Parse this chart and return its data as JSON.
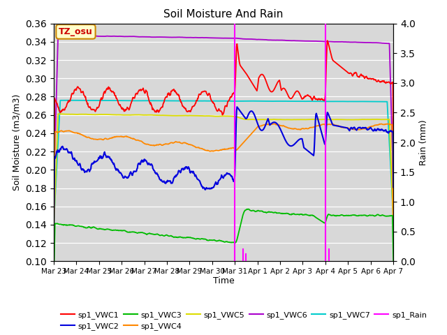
{
  "title": "Soil Moisture And Rain",
  "ylabel_left": "Soil Moisture (m3/m3)",
  "ylabel_right": "Rain (mm)",
  "xlabel": "Time",
  "annotation": "TZ_osu",
  "ylim_left": [
    0.1,
    0.36
  ],
  "ylim_right": [
    0.0,
    4.0
  ],
  "yticks_left": [
    0.1,
    0.12,
    0.14,
    0.16,
    0.18,
    0.2,
    0.22,
    0.24,
    0.26,
    0.28,
    0.3,
    0.32,
    0.34,
    0.36
  ],
  "yticks_right": [
    0.0,
    0.5,
    1.0,
    1.5,
    2.0,
    2.5,
    3.0,
    3.5,
    4.0
  ],
  "background_color": "#d8d8d8",
  "colors": {
    "sp1_VWC1": "#ff0000",
    "sp1_VWC2": "#0000dd",
    "sp1_VWC3": "#00bb00",
    "sp1_VWC4": "#ff8800",
    "sp1_VWC5": "#dddd00",
    "sp1_VWC6": "#aa00cc",
    "sp1_VWC7": "#00cccc",
    "sp1_Rain": "#ff00ff"
  },
  "xtick_labels": [
    "Mar 23",
    "Mar 24",
    "Mar 25",
    "Mar 26",
    "Mar 27",
    "Mar 28",
    "Mar 29",
    "Mar 30",
    "Mar 31",
    "Apr 1",
    "Apr 2",
    "Apr 3",
    "Apr 4",
    "Apr 5",
    "Apr 6",
    "Apr 7"
  ]
}
